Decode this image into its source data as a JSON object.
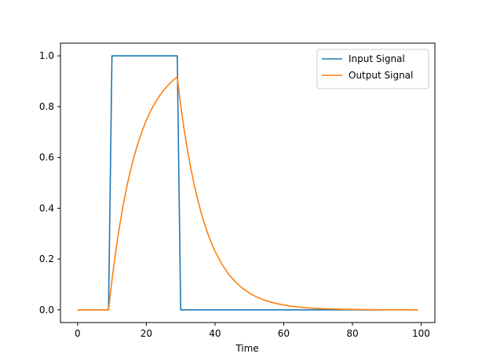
{
  "chart_data": {
    "type": "line",
    "title": "",
    "xlabel": "Time",
    "ylabel": "",
    "xlim": [
      -5,
      104
    ],
    "ylim": [
      -0.05,
      1.05
    ],
    "xticks": [
      0,
      20,
      40,
      60,
      80,
      100
    ],
    "xtick_labels": [
      "0",
      "20",
      "40",
      "60",
      "80",
      "100"
    ],
    "yticks": [
      0.0,
      0.2,
      0.4,
      0.6,
      0.8,
      1.0
    ],
    "ytick_labels": [
      "0.0",
      "0.2",
      "0.4",
      "0.6",
      "0.8",
      "1.0"
    ],
    "grid": false,
    "legend_position": "top-right",
    "series": [
      {
        "name": "Input Signal",
        "color": "#1f77b4",
        "x": [
          0,
          9,
          10,
          29,
          30,
          99
        ],
        "y": [
          0,
          0,
          1,
          1,
          0,
          0
        ]
      },
      {
        "name": "Output Signal",
        "color": "#ff7f0e",
        "x": [
          0,
          9,
          10,
          11,
          12,
          13,
          14,
          15,
          16,
          17,
          18,
          19,
          20,
          21,
          22,
          23,
          24,
          25,
          26,
          27,
          28,
          29,
          30,
          31,
          32,
          33,
          34,
          35,
          36,
          37,
          38,
          39,
          40,
          42,
          44,
          46,
          48,
          50,
          52,
          54,
          56,
          58,
          60,
          62,
          64,
          66,
          68,
          70,
          72,
          74,
          76,
          78,
          80,
          82,
          84,
          86,
          88,
          90,
          92,
          94,
          96,
          99
        ],
        "y": [
          0,
          0,
          0.1175,
          0.221,
          0.3125,
          0.393,
          0.464,
          0.5265,
          0.582,
          0.631,
          0.674,
          0.712,
          0.746,
          0.776,
          0.802,
          0.825,
          0.8455,
          0.8635,
          0.8795,
          0.8935,
          0.906,
          0.917,
          0.805,
          0.7105,
          0.627,
          0.5535,
          0.4885,
          0.431,
          0.3805,
          0.3355,
          0.2965,
          0.2615,
          0.2305,
          0.1795,
          0.1399,
          0.109,
          0.0849,
          0.0661,
          0.0515,
          0.0401,
          0.0313,
          0.0244,
          0.019,
          0.0148,
          0.0115,
          0.009,
          0.007,
          0.0054,
          0.0042,
          0.0033,
          0.0026,
          0.002,
          0.0016,
          0.0012,
          0.001,
          0.0007,
          0.0006,
          0.0004,
          0.0003,
          0.0003,
          0.0002,
          0.0001
        ]
      }
    ]
  }
}
